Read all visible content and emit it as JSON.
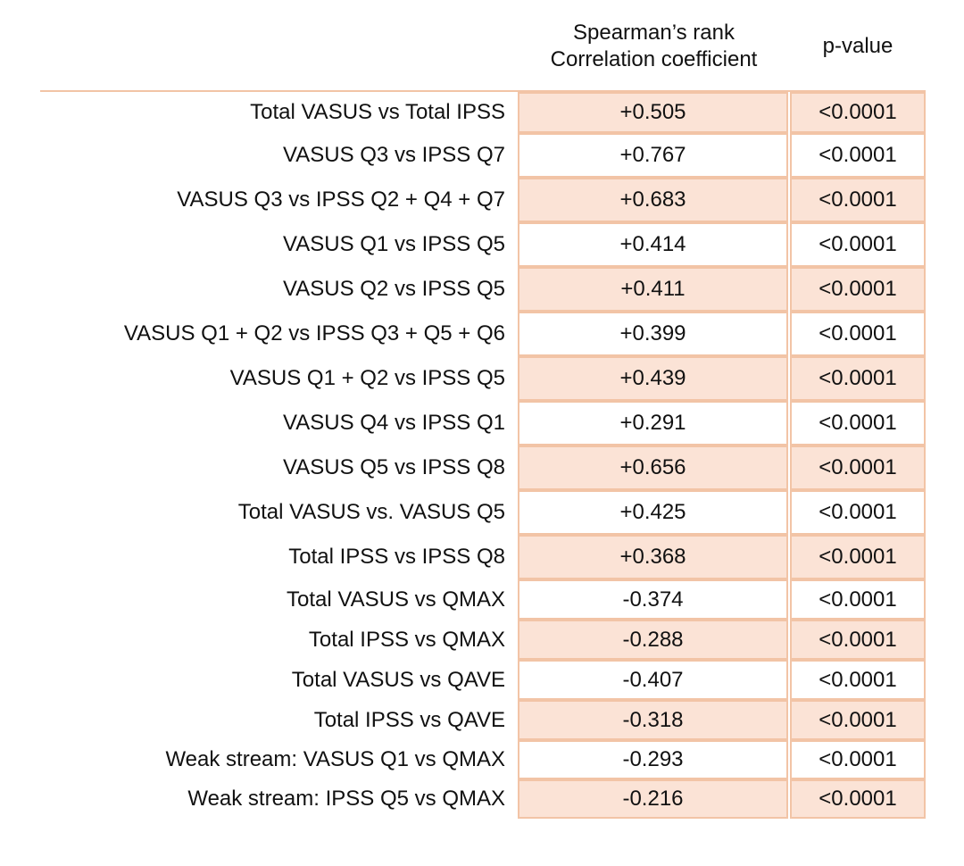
{
  "header": {
    "corr_line1": "Spearman’s rank",
    "corr_line2": "Correlation coefficient",
    "pvalue": "p-value"
  },
  "colors": {
    "shade": "#fbe3d6",
    "border": "#f2c4a6"
  },
  "rows": [
    {
      "comparison": "Total VASUS vs Total IPSS",
      "coefficient": "+0.505",
      "p_value": "<0.0001"
    },
    {
      "comparison": "VASUS Q3 vs IPSS Q7",
      "coefficient": "+0.767",
      "p_value": "<0.0001"
    },
    {
      "comparison": "VASUS Q3 vs IPSS Q2 + Q4 + Q7",
      "coefficient": "+0.683",
      "p_value": "<0.0001"
    },
    {
      "comparison": "VASUS Q1 vs IPSS Q5",
      "coefficient": "+0.414",
      "p_value": "<0.0001"
    },
    {
      "comparison": "VASUS Q2 vs IPSS Q5",
      "coefficient": "+0.411",
      "p_value": "<0.0001"
    },
    {
      "comparison": "VASUS Q1 + Q2 vs IPSS Q3 + Q5 + Q6",
      "coefficient": "+0.399",
      "p_value": "<0.0001"
    },
    {
      "comparison": "VASUS Q1 + Q2 vs IPSS Q5",
      "coefficient": "+0.439",
      "p_value": "<0.0001"
    },
    {
      "comparison": "VASUS Q4 vs IPSS Q1",
      "coefficient": "+0.291",
      "p_value": "<0.0001"
    },
    {
      "comparison": "VASUS Q5 vs IPSS Q8",
      "coefficient": "+0.656",
      "p_value": "<0.0001"
    },
    {
      "comparison": "Total VASUS vs. VASUS Q5",
      "coefficient": "+0.425",
      "p_value": "<0.0001"
    },
    {
      "comparison": "Total IPSS vs IPSS Q8",
      "coefficient": "+0.368",
      "p_value": "<0.0001"
    },
    {
      "comparison": "Total VASUS vs QMAX",
      "coefficient": "-0.374",
      "p_value": "<0.0001"
    },
    {
      "comparison": "Total IPSS vs QMAX",
      "coefficient": "-0.288",
      "p_value": "<0.0001"
    },
    {
      "comparison": "Total VASUS vs QAVE",
      "coefficient": "-0.407",
      "p_value": "<0.0001"
    },
    {
      "comparison": "Total IPSS vs QAVE",
      "coefficient": "-0.318",
      "p_value": "<0.0001"
    },
    {
      "comparison": "Weak stream: VASUS Q1 vs QMAX",
      "coefficient": "-0.293",
      "p_value": "<0.0001"
    },
    {
      "comparison": "Weak stream: IPSS Q5 vs QMAX",
      "coefficient": "-0.216",
      "p_value": "<0.0001"
    }
  ]
}
